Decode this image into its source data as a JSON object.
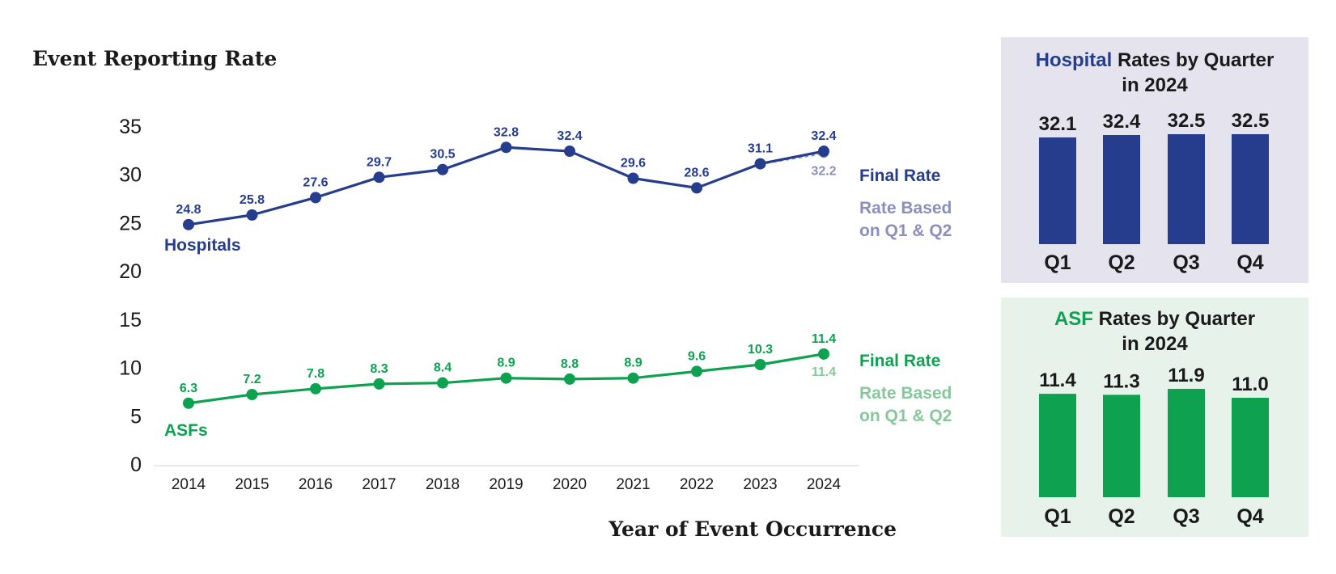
{
  "colors": {
    "hospital": "#253d8c",
    "hospital_prelim": "#8b8fbd",
    "asf": "#0ea150",
    "asf_prelim": "#86c79b",
    "hospital_panel_bg": "#e5e3ee",
    "asf_panel_bg": "#e7f3ea",
    "axis_text": "#1a1a1a"
  },
  "chart_data": [
    {
      "type": "line",
      "title": "Event Reporting Rate",
      "xlabel": "Year of Event Occurrence",
      "ylabel": "",
      "ylim": [
        0,
        35
      ],
      "yticks": [
        "0",
        "5",
        "10",
        "15",
        "20",
        "25",
        "30",
        "35"
      ],
      "categories": [
        "2014",
        "2015",
        "2016",
        "2017",
        "2018",
        "2019",
        "2020",
        "2021",
        "2022",
        "2023",
        "2024"
      ],
      "series": [
        {
          "name": "Hospitals",
          "label": "Hospitals",
          "final_label": "Final Rate",
          "prelim_label_lines": [
            "Rate Based",
            "on Q1 & Q2"
          ],
          "values": [
            24.8,
            25.8,
            27.6,
            29.7,
            30.5,
            32.8,
            32.4,
            29.6,
            28.6,
            31.1,
            32.4
          ],
          "value_labels": [
            "24.8",
            "25.8",
            "27.6",
            "29.7",
            "30.5",
            "32.8",
            "32.4",
            "29.6",
            "28.6",
            "31.1",
            "32.4"
          ],
          "prelim_value": 32.2,
          "prelim_value_label": "32.2"
        },
        {
          "name": "ASFs",
          "label": "ASFs",
          "final_label": "Final Rate",
          "prelim_label_lines": [
            "Rate Based",
            "on Q1 & Q2"
          ],
          "values": [
            6.3,
            7.2,
            7.8,
            8.3,
            8.4,
            8.9,
            8.8,
            8.9,
            9.6,
            10.3,
            11.4
          ],
          "value_labels": [
            "6.3",
            "7.2",
            "7.8",
            "8.3",
            "8.4",
            "8.9",
            "8.8",
            "8.9",
            "9.6",
            "10.3",
            "11.4"
          ],
          "prelim_value": 11.4,
          "prelim_value_label": "11.4"
        }
      ]
    },
    {
      "type": "bar",
      "title_highlight": "Hospital",
      "title_rest": " Rates by Quarter",
      "title_line2": "in 2024",
      "categories": [
        "Q1",
        "Q2",
        "Q3",
        "Q4"
      ],
      "values": [
        32.1,
        32.4,
        32.5,
        32.5
      ],
      "value_labels": [
        "32.1",
        "32.4",
        "32.5",
        "32.5"
      ]
    },
    {
      "type": "bar",
      "title_highlight": "ASF",
      "title_rest": " Rates by Quarter",
      "title_line2": "in 2024",
      "categories": [
        "Q1",
        "Q2",
        "Q3",
        "Q4"
      ],
      "values": [
        11.4,
        11.3,
        11.9,
        11.0
      ],
      "value_labels": [
        "11.4",
        "11.3",
        "11.9",
        "11.0"
      ]
    }
  ]
}
